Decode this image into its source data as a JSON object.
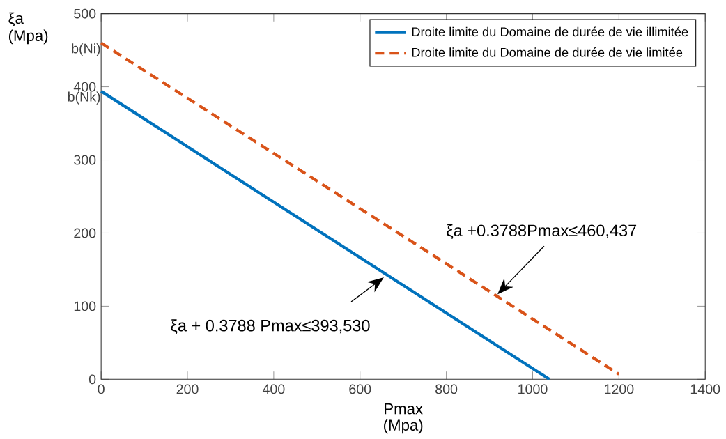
{
  "chart_data": {
    "type": "line",
    "xlabel": "Pmax (Mpa)",
    "ylabel": "ξa (Mpa)",
    "xlim": [
      0,
      1400
    ],
    "xticks": [
      0,
      200,
      400,
      600,
      800,
      1000,
      1200,
      1400
    ],
    "ylim": [
      0,
      500
    ],
    "yticks": [
      0,
      100,
      200,
      300,
      400,
      500
    ],
    "series": [
      {
        "name": "Droite limite du Domaine de durée de vie illimitée",
        "color": "#0072bd",
        "line_style": "solid",
        "x": [
          0,
          1039
        ],
        "values": [
          394,
          0
        ]
      },
      {
        "name": "Droite limite du Domaine de durée de vie limitée",
        "color": "#d95319",
        "line_style": "dashed",
        "x": [
          0,
          1200
        ],
        "values": [
          460,
          7
        ]
      }
    ],
    "annotations": [
      "ξa +0.3788Pmax≤460,437",
      "ξa + 0.3788 Pmax≤393,530",
      {
        "text": "b(Ni)",
        "x": 0,
        "y": 460
      },
      {
        "text": "b(Nk)",
        "x": 0,
        "y": 394
      }
    ],
    "legend": "top right",
    "grid": false,
    "marker": "none"
  }
}
